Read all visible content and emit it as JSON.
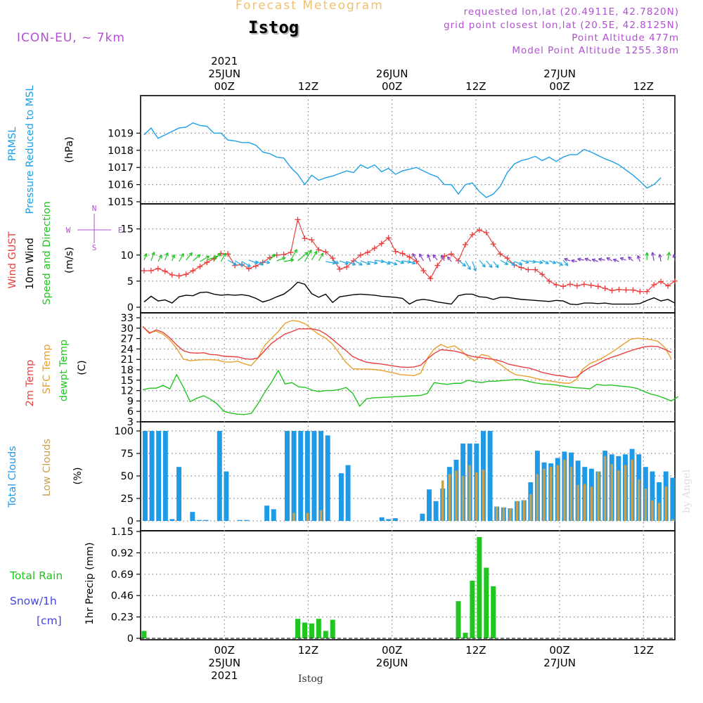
{
  "header": {
    "app_title": "Forecast Meteogram",
    "location": "Istog",
    "model": "ICON-EU, ~ 7km",
    "requested": "requested lon,lat (20.4911E, 42.7820N)",
    "grid_point": "grid point closest lon,lat (20.5E, 42.8125N)",
    "point_altitude": "Point Altitude 477m",
    "model_altitude": "Model Point Altitude 1255.38m",
    "footer_location": "Istog",
    "watermark": "by Angel"
  },
  "colors": {
    "pressure": "#1ea0e6",
    "gust": "#e84040",
    "wind": "#000000",
    "direction": "#22c422",
    "temp2m": "#e84040",
    "sfc": "#e8a030",
    "dewpt": "#22c422",
    "total_clouds": "#1e9ae6",
    "low_clouds": "#c8a050",
    "rain": "#22c422",
    "snow": "#4646e6",
    "meta": "#b050d0",
    "title": "#f0c070"
  },
  "chart_data": {
    "type": "meteogram",
    "time": {
      "top_ticks": [
        {
          "label": "00Z",
          "hour": 12,
          "date": "25JUN",
          "year": "2021"
        },
        {
          "label": "12Z",
          "hour": 24
        },
        {
          "label": "00Z",
          "hour": 36,
          "date": "26JUN"
        },
        {
          "label": "12Z",
          "hour": 48
        },
        {
          "label": "00Z",
          "hour": 60,
          "date": "27JUN"
        },
        {
          "label": "12Z",
          "hour": 72
        }
      ],
      "x_range_hours": [
        0,
        76.5
      ],
      "step_hours": 1
    },
    "pressure": {
      "ylabel_lines": [
        "PRMSL",
        "Pressure Reduced to MSL"
      ],
      "unit": "(hPa)",
      "ylim": [
        1015,
        1020
      ],
      "ticks": [
        "1015",
        "1016",
        "1017",
        "1018",
        "1019"
      ],
      "values": [
        1018.9,
        1019.3,
        1018.7,
        1018.9,
        1019.1,
        1019.3,
        1019.35,
        1019.6,
        1019.45,
        1019.4,
        1019.0,
        1019.0,
        1018.6,
        1018.55,
        1018.45,
        1018.45,
        1018.3,
        1017.9,
        1017.8,
        1017.6,
        1017.55,
        1017.0,
        1016.6,
        1016.0,
        1016.55,
        1016.25,
        1016.4,
        1016.5,
        1016.65,
        1016.8,
        1016.7,
        1017.15,
        1016.95,
        1017.15,
        1016.75,
        1016.95,
        1016.6,
        1016.8,
        1016.9,
        1017.0,
        1016.8,
        1016.6,
        1016.45,
        1016.0,
        1016.0,
        1015.45,
        1016.0,
        1016.1,
        1015.6,
        1015.25,
        1015.45,
        1015.9,
        1016.7,
        1017.2,
        1017.4,
        1017.5,
        1017.65,
        1017.4,
        1017.6,
        1017.35,
        1017.6,
        1017.75,
        1017.75,
        1018.05,
        1017.9,
        1017.7,
        1017.5,
        1017.35,
        1017.15,
        1016.85,
        1016.55,
        1016.2,
        1015.8,
        1016.0,
        1016.4
      ]
    },
    "wind": {
      "ylabel_lines": [
        "Wind GUST",
        "10m Wind",
        "Speed and Direction"
      ],
      "unit": "(m/s)",
      "ylim": [
        0,
        19
      ],
      "ticks": [
        "0",
        "5",
        "10",
        "15"
      ],
      "compass": {
        "n": "N",
        "s": "S",
        "w": "W",
        "e": "E"
      },
      "gust": [
        7.0,
        7.0,
        7.4,
        6.9,
        6.2,
        6.0,
        6.3,
        7.0,
        7.8,
        8.6,
        9.3,
        10.3,
        10.2,
        8.0,
        8.2,
        7.4,
        7.9,
        8.6,
        9.5,
        10.0,
        10.1,
        10.5,
        16.8,
        13.2,
        12.9,
        11.0,
        10.6,
        9.4,
        7.3,
        7.7,
        8.9,
        10.0,
        10.5,
        11.3,
        12.2,
        13.3,
        10.7,
        10.3,
        9.6,
        8.8,
        7.0,
        5.5,
        8.0,
        9.8,
        10.2,
        8.9,
        12.0,
        13.9,
        14.8,
        14.3,
        12.1,
        10.2,
        9.4,
        8.1,
        7.6,
        7.2,
        7.2,
        6.3,
        5.0,
        4.3,
        4.0,
        4.4,
        4.1,
        4.4,
        4.2,
        4.0,
        3.6,
        3.2,
        3.4,
        3.3,
        3.3,
        3.0,
        3.0,
        4.3,
        4.9,
        4.1,
        5.0
      ],
      "speed": [
        1.0,
        2.1,
        1.2,
        1.4,
        0.8,
        2.0,
        2.3,
        2.2,
        2.8,
        2.9,
        2.5,
        2.3,
        2.4,
        2.3,
        2.4,
        2.2,
        1.7,
        1.0,
        1.4,
        2.0,
        2.5,
        3.5,
        4.8,
        4.4,
        2.6,
        1.9,
        2.5,
        0.9,
        2.0,
        2.2,
        2.4,
        2.5,
        2.4,
        2.3,
        2.1,
        2.0,
        1.9,
        1.7,
        0.6,
        1.3,
        1.5,
        1.3,
        1.0,
        0.8,
        0.6,
        2.2,
        2.5,
        2.5,
        2.0,
        1.9,
        1.5,
        1.9,
        1.9,
        1.7,
        1.5,
        1.4,
        1.3,
        1.2,
        1.1,
        1.3,
        1.2,
        0.6,
        0.5,
        0.8,
        0.8,
        0.7,
        0.8,
        0.6,
        0.6,
        0.6,
        0.6,
        0.7,
        1.3,
        1.8,
        1.2,
        1.5,
        0.8
      ],
      "direction_deg": [
        200,
        200,
        210,
        200,
        200,
        210,
        220,
        230,
        240,
        250,
        220,
        210,
        300,
        300,
        300,
        290,
        300,
        280,
        220,
        250,
        260,
        210,
        230,
        210,
        210,
        210,
        280,
        300,
        290,
        290,
        300,
        290,
        280,
        280,
        290,
        290,
        290,
        280,
        290,
        150,
        150,
        160,
        140,
        150,
        140,
        310,
        330,
        340,
        320,
        320,
        320,
        300,
        300,
        290,
        290,
        280,
        280,
        300,
        290,
        300,
        320,
        110,
        100,
        100,
        110,
        110,
        100,
        120,
        110,
        110,
        130,
        160,
        180,
        170,
        170,
        190,
        170
      ]
    },
    "temperature": {
      "ylabel_lines": [
        "2m Temp",
        "SFC Temp",
        "dewpt Temp"
      ],
      "unit": "(C)",
      "ylim": [
        3,
        33
      ],
      "ticks": [
        "3",
        "6",
        "9",
        "12",
        "15",
        "18",
        "21",
        "24",
        "27",
        "30",
        "33"
      ],
      "temp2m": [
        30.5,
        28.5,
        29.5,
        28.8,
        27.2,
        25.2,
        23.5,
        22.9,
        22.8,
        22.9,
        22.4,
        22.3,
        21.9,
        21.8,
        21.7,
        21.2,
        21.0,
        21.4,
        23.5,
        25.6,
        27.0,
        28.3,
        29.0,
        29.8,
        29.8,
        29.8,
        29.4,
        28.3,
        26.8,
        25.1,
        23.5,
        21.8,
        20.9,
        20.2,
        19.9,
        19.7,
        19.4,
        19.1,
        18.8,
        18.7,
        18.8,
        19.3,
        21.1,
        22.7,
        23.8,
        23.6,
        23.4,
        22.9,
        22.2,
        21.7,
        21.5,
        21.2,
        20.9,
        20.4,
        19.6,
        19.2,
        18.8,
        18.5,
        17.9,
        17.2,
        16.8,
        16.4,
        16.2,
        15.8,
        15.9,
        17.5,
        18.7,
        19.6,
        20.6,
        21.5,
        22.1,
        22.8,
        23.5,
        24.1,
        24.6,
        24.8,
        24.7,
        23.9,
        23.0
      ],
      "sfc": [
        30.4,
        28.8,
        29.1,
        28.3,
        26.6,
        24.2,
        21.1,
        20.6,
        20.8,
        20.9,
        20.9,
        20.8,
        20.3,
        20.2,
        20.5,
        19.7,
        19.2,
        21.4,
        25.0,
        27.1,
        29.0,
        31.4,
        32.2,
        32.0,
        31.2,
        29.6,
        28.2,
        27.1,
        25.4,
        22.8,
        20.1,
        18.3,
        18.2,
        18.2,
        18.1,
        17.9,
        17.5,
        17.1,
        16.6,
        16.5,
        16.3,
        17.0,
        21.3,
        24.0,
        25.3,
        24.4,
        24.9,
        23.6,
        21.7,
        20.6,
        22.4,
        22.0,
        20.5,
        19.2,
        17.7,
        16.6,
        16.3,
        16.0,
        15.5,
        15.1,
        14.8,
        14.5,
        14.2,
        14.1,
        15.2,
        18.3,
        19.8,
        20.6,
        21.6,
        22.8,
        24.1,
        25.5,
        26.8,
        27.1,
        26.9,
        26.7,
        26.2,
        24.5,
        21.2
      ],
      "dewpt": [
        12.2,
        12.7,
        12.7,
        13.5,
        12.5,
        16.6,
        13.0,
        8.8,
        9.8,
        10.5,
        9.5,
        8.1,
        6.0,
        5.5,
        5.2,
        5.1,
        5.4,
        8.2,
        11.5,
        14.4,
        17.8,
        13.9,
        14.3,
        13.1,
        12.9,
        12.1,
        11.7,
        12.0,
        12.0,
        12.3,
        12.9,
        11.2,
        7.5,
        9.6,
        9.9,
        10.0,
        10.1,
        10.2,
        10.3,
        10.4,
        10.5,
        10.6,
        11.2,
        14.3,
        14.0,
        13.8,
        14.1,
        14.1,
        15.0,
        14.6,
        14.3,
        14.7,
        14.7,
        14.9,
        15.0,
        15.2,
        15.1,
        14.6,
        14.2,
        13.9,
        13.8,
        13.6,
        13.3,
        13.0,
        12.8,
        12.7,
        12.5,
        13.8,
        13.5,
        13.6,
        13.4,
        13.2,
        13.0,
        12.6,
        11.7,
        11.0,
        10.5,
        9.8,
        9.0,
        10.3
      ],
      "temp2m_start_hour": 0,
      "dewpt_start_hour": 0
    },
    "clouds": {
      "ylabel_lines": [
        "Total Clouds",
        "Low Clouds"
      ],
      "unit": "(%)",
      "ylim": [
        0,
        100
      ],
      "ticks": [
        "0",
        "25",
        "50",
        "75",
        "100"
      ],
      "total": [
        100,
        100,
        100,
        100,
        2,
        60,
        0,
        10,
        1,
        1,
        0,
        100,
        55,
        0,
        1,
        1,
        0,
        0,
        17,
        13,
        0,
        100,
        100,
        100,
        100,
        100,
        100,
        95,
        0,
        53,
        62,
        0,
        0,
        0,
        0,
        4,
        2,
        3,
        0,
        0,
        0,
        8,
        35,
        22,
        36,
        60,
        68,
        86,
        86,
        86,
        100,
        100,
        16,
        15,
        14,
        22,
        23,
        43,
        78,
        65,
        64,
        70,
        77,
        76,
        67,
        60,
        58,
        55,
        78,
        74,
        72,
        74,
        80,
        74,
        60,
        55,
        43,
        55,
        48
      ],
      "low": [
        0,
        0,
        0,
        0,
        0,
        0,
        0,
        0,
        0,
        0,
        0,
        0,
        0,
        0,
        0,
        0,
        0,
        0,
        0,
        0,
        0,
        0,
        9,
        0,
        9,
        0,
        12,
        0,
        0,
        0,
        0,
        0,
        0,
        0,
        0,
        0,
        0,
        0,
        0,
        0,
        0,
        0,
        0,
        0,
        45,
        52,
        56,
        50,
        62,
        54,
        57,
        0,
        16,
        15,
        14,
        22,
        23,
        30,
        52,
        58,
        60,
        62,
        68,
        60,
        40,
        41,
        38,
        55,
        72,
        63,
        56,
        62,
        68,
        46,
        36,
        23,
        20,
        38,
        2
      ],
      "start_hour": 0
    },
    "precip": {
      "ylabel_lines": [
        "Total  Rain",
        "Snow/1h",
        "[cm]"
      ],
      "ylabel": "1hr Precip (mm)",
      "ylim": [
        0,
        1.15
      ],
      "ticks": [
        "0",
        "0.23",
        "0.46",
        "0.69",
        "0.92",
        "1.15"
      ],
      "rain": [
        {
          "hour": 0.5,
          "value": 0.08
        },
        {
          "hour": 22.5,
          "value": 0.21
        },
        {
          "hour": 23.5,
          "value": 0.17
        },
        {
          "hour": 24.5,
          "value": 0.16
        },
        {
          "hour": 25.5,
          "value": 0.21
        },
        {
          "hour": 26.5,
          "value": 0.08
        },
        {
          "hour": 27.5,
          "value": 0.2
        },
        {
          "hour": 45.5,
          "value": 0.4
        },
        {
          "hour": 46.5,
          "value": 0.06
        },
        {
          "hour": 47.5,
          "value": 0.62
        },
        {
          "hour": 48.5,
          "value": 1.09
        },
        {
          "hour": 49.5,
          "value": 0.76
        },
        {
          "hour": 50.5,
          "value": 0.56
        }
      ],
      "snow": []
    },
    "bottom_ticks": [
      {
        "label": "00Z",
        "hour": 12,
        "date": "25JUN",
        "year": "2021"
      },
      {
        "label": "12Z",
        "hour": 24
      },
      {
        "label": "00Z",
        "hour": 36,
        "date": "26JUN"
      },
      {
        "label": "12Z",
        "hour": 48
      },
      {
        "label": "00Z",
        "hour": 60,
        "date": "27JUN"
      },
      {
        "label": "12Z",
        "hour": 72
      }
    ]
  }
}
